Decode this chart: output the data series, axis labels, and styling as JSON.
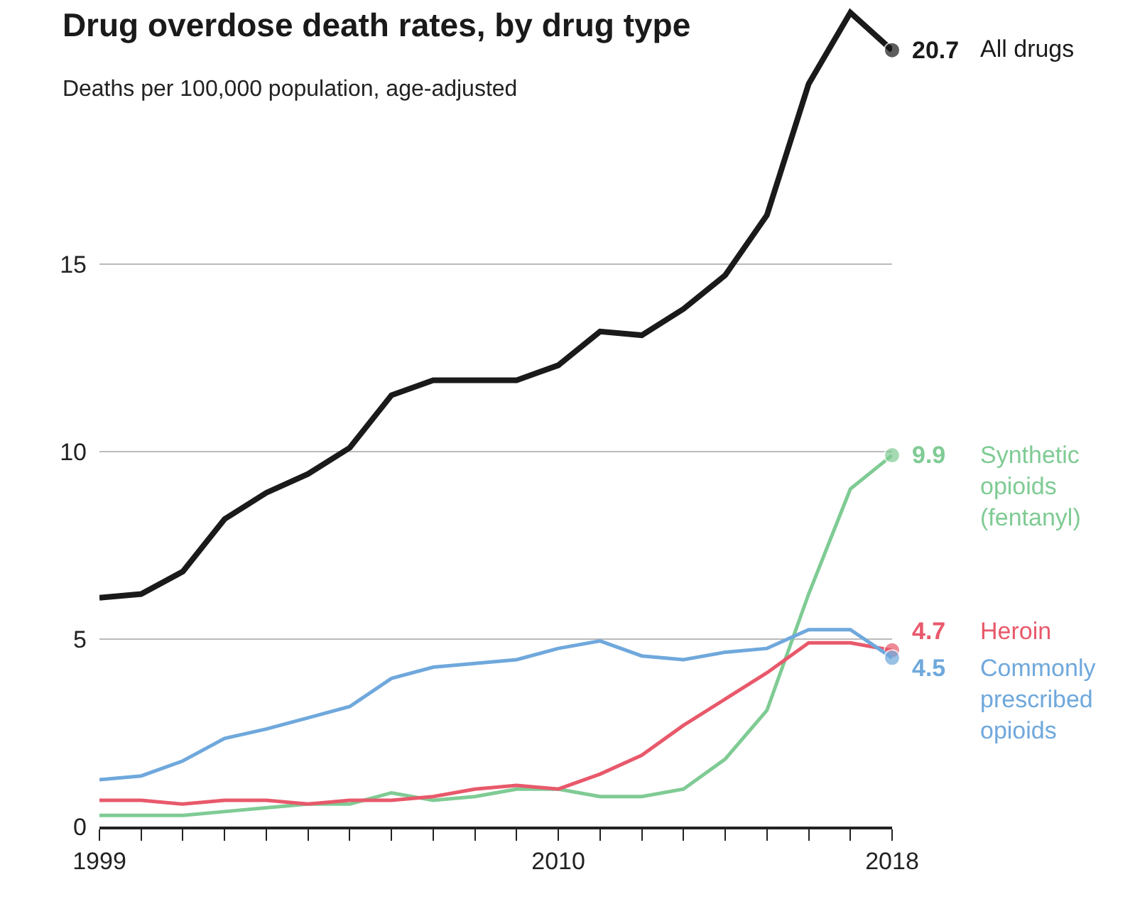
{
  "chart_data": {
    "type": "line",
    "title": "Drug overdose death rates, by drug type",
    "subtitle": "Deaths per 100,000 population, age-adjusted",
    "x": [
      1999,
      2000,
      2001,
      2002,
      2003,
      2004,
      2005,
      2006,
      2007,
      2008,
      2009,
      2010,
      2011,
      2012,
      2013,
      2014,
      2015,
      2016,
      2017,
      2018
    ],
    "series": [
      {
        "name": "All drugs",
        "color": "#1a1a1a",
        "values": [
          6.1,
          6.2,
          6.8,
          8.2,
          8.9,
          9.4,
          10.1,
          11.5,
          11.9,
          11.9,
          11.9,
          12.3,
          13.2,
          13.1,
          13.8,
          14.7,
          16.3,
          19.8,
          21.7,
          20.7
        ],
        "value_labels": [
          null,
          null,
          null,
          null,
          null,
          null,
          null,
          null,
          null,
          null,
          null,
          null,
          null,
          null,
          null,
          null,
          null,
          null,
          null,
          "20.7"
        ]
      },
      {
        "name": "Synthetic opioids (fentanyl)",
        "color": "#7fcb94",
        "values": [
          0.3,
          0.3,
          0.3,
          0.4,
          0.5,
          0.6,
          0.6,
          0.9,
          0.7,
          0.8,
          1.0,
          1.0,
          0.8,
          0.8,
          1.0,
          1.8,
          3.1,
          6.2,
          9.0,
          9.9
        ],
        "value_labels": [
          null,
          null,
          null,
          null,
          null,
          null,
          null,
          null,
          null,
          null,
          null,
          null,
          null,
          null,
          null,
          null,
          null,
          null,
          null,
          "9.9"
        ]
      },
      {
        "name": "Heroin",
        "color": "#e8596b",
        "values": [
          0.7,
          0.7,
          0.6,
          0.7,
          0.7,
          0.6,
          0.7,
          0.7,
          0.8,
          1.0,
          1.1,
          1.0,
          1.4,
          1.9,
          2.7,
          3.4,
          4.1,
          4.9,
          4.9,
          4.7
        ],
        "value_labels": [
          null,
          null,
          null,
          null,
          null,
          null,
          null,
          null,
          null,
          null,
          null,
          null,
          null,
          null,
          null,
          null,
          null,
          null,
          null,
          "4.7"
        ]
      },
      {
        "name": "Commonly prescribed opioids",
        "color": "#6fa8dc",
        "values": [
          1.25,
          1.35,
          1.75,
          2.35,
          2.6,
          2.9,
          3.2,
          3.95,
          4.25,
          4.35,
          4.45,
          4.75,
          4.95,
          4.55,
          4.45,
          4.65,
          4.75,
          5.25,
          5.25,
          4.5
        ],
        "value_labels": [
          null,
          null,
          null,
          null,
          null,
          null,
          null,
          null,
          null,
          null,
          null,
          null,
          null,
          null,
          null,
          null,
          null,
          null,
          null,
          "4.5"
        ]
      }
    ],
    "xlim": [
      1999,
      2018
    ],
    "xticks": [
      1999,
      {
        "value": 2000,
        "label": null
      },
      {
        "value": 2001,
        "label": null
      },
      {
        "value": 2002,
        "label": null
      },
      {
        "value": 2003,
        "label": null
      },
      {
        "value": 2004,
        "label": null
      },
      {
        "value": 2005,
        "label": null
      },
      {
        "value": 2006,
        "label": null
      },
      {
        "value": 2007,
        "label": null
      },
      {
        "value": 2008,
        "label": null
      },
      {
        "value": 2009,
        "label": null
      },
      2010,
      {
        "value": 2011,
        "label": null
      },
      {
        "value": 2012,
        "label": null
      },
      {
        "value": 2013,
        "label": null
      },
      {
        "value": 2014,
        "label": null
      },
      {
        "value": 2015,
        "label": null
      },
      {
        "value": 2016,
        "label": null
      },
      {
        "value": 2017,
        "label": null
      },
      2018
    ],
    "ylim": [
      0,
      22
    ],
    "yticks": [
      0,
      5,
      10,
      15
    ],
    "grid": "y",
    "legend": false
  }
}
